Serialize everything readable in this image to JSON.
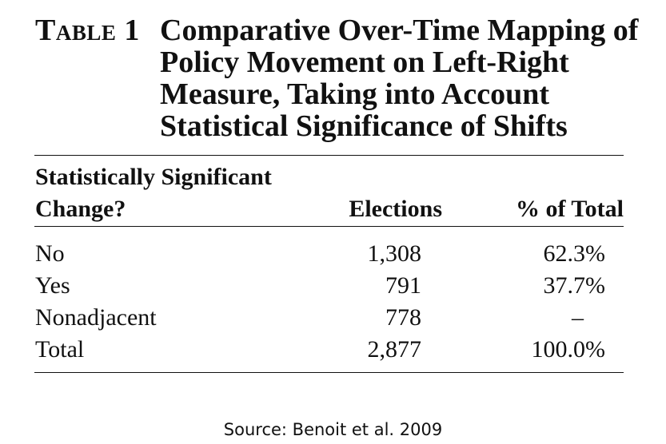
{
  "table": {
    "label": "Table 1",
    "caption_lines": [
      "Comparative Over-Time Mapping of",
      "Policy Movement on Left-Right",
      "Measure, Taking into Account",
      "Statistical Significance of Shifts"
    ],
    "columns": {
      "col1_lines": [
        "Statistically Significant",
        "Change?"
      ],
      "col2": "Elections",
      "col3": "% of Total"
    },
    "rows": [
      {
        "label": "No",
        "elections": "1,308",
        "percent": "62.3%"
      },
      {
        "label": "Yes",
        "elections": "791",
        "percent": "37.7%"
      },
      {
        "label": "Nonadjacent",
        "elections": "778",
        "percent": "–"
      },
      {
        "label": "Total",
        "elections": "2,877",
        "percent": "100.0%"
      }
    ]
  },
  "source": "Source: Benoit et al. 2009"
}
